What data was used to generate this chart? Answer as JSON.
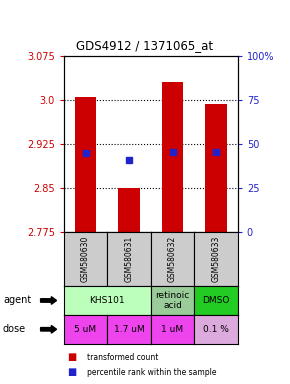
{
  "title": "GDS4912 / 1371065_at",
  "samples": [
    "GSM580630",
    "GSM580631",
    "GSM580632",
    "GSM580633"
  ],
  "bar_bottoms": [
    2.775,
    2.775,
    2.775,
    2.775
  ],
  "bar_tops": [
    3.005,
    2.851,
    3.031,
    2.993
  ],
  "percentile_values": [
    2.91,
    2.898,
    2.912,
    2.911
  ],
  "ylim_min": 2.775,
  "ylim_max": 3.075,
  "yticks_left": [
    2.775,
    2.85,
    2.925,
    3.0,
    3.075
  ],
  "yticks_right": [
    0,
    25,
    50,
    75,
    100
  ],
  "bar_color": "#cc0000",
  "percentile_color": "#2222cc",
  "agent_groups": [
    {
      "label": "KHS101",
      "cols": [
        0,
        1
      ],
      "color": "#bbffbb"
    },
    {
      "label": "retinoic\nacid",
      "cols": [
        2,
        2
      ],
      "color": "#99cc99"
    },
    {
      "label": "DMSO",
      "cols": [
        3,
        3
      ],
      "color": "#22cc22"
    }
  ],
  "dose_labels": [
    "5 uM",
    "1.7 uM",
    "1 uM",
    "0.1 %"
  ],
  "dose_colors": [
    "#ee44ee",
    "#ee44ee",
    "#ee44ee",
    "#ddaadd"
  ],
  "sample_bg_color": "#cccccc",
  "legend_bar_color": "#cc0000",
  "legend_dot_color": "#2222cc",
  "legend_label1": "transformed count",
  "legend_label2": "percentile rank within the sample",
  "right_yaxis_color": "#2222cc",
  "left_yaxis_color": "#cc0000"
}
